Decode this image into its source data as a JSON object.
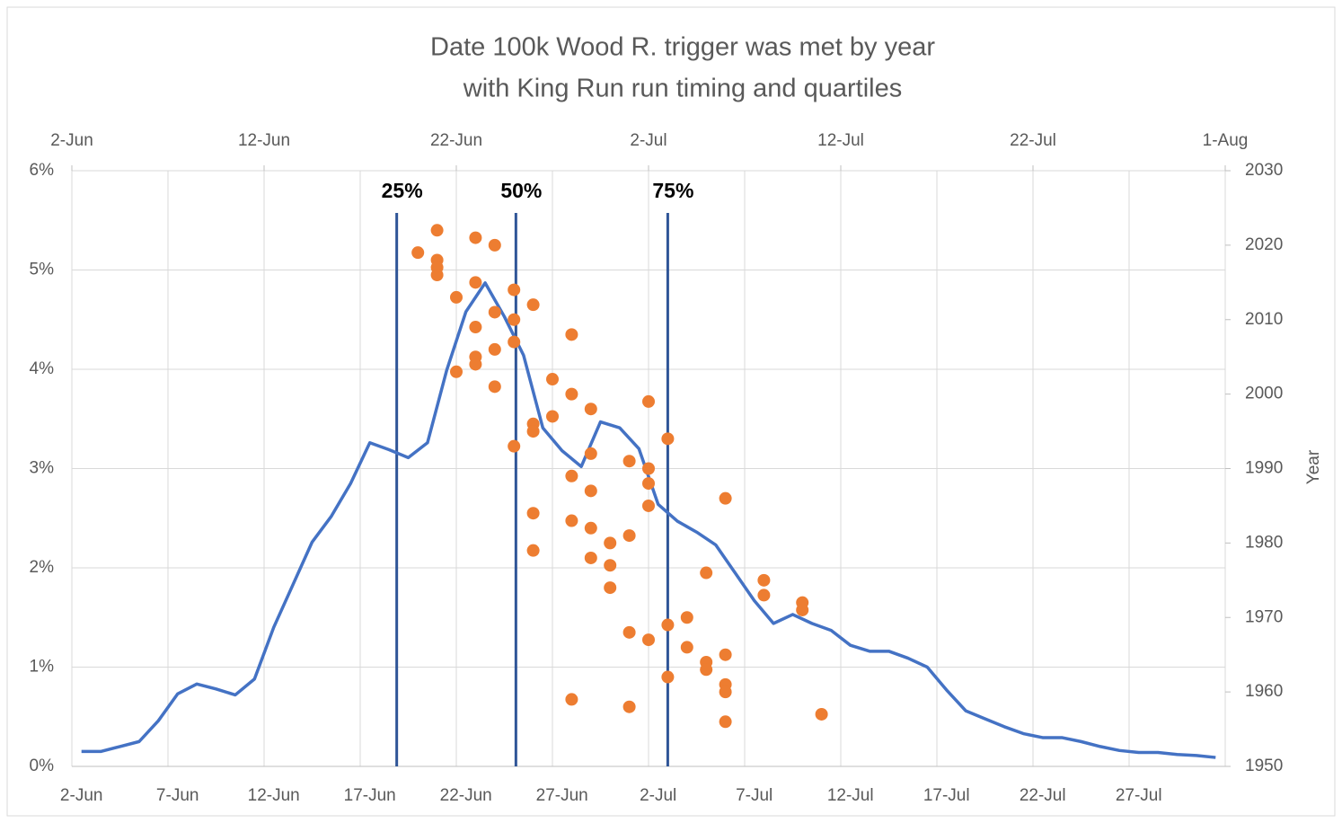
{
  "chart_data": {
    "type": "combo",
    "title": [
      "Date 100k Wood R. trigger was met by year",
      "with King Run run timing and quartiles"
    ],
    "y2_label": "Year",
    "categories": [
      "2-Jun",
      null,
      null,
      null,
      null,
      "7-Jun",
      null,
      null,
      null,
      null,
      "12-Jun",
      null,
      null,
      null,
      null,
      "17-Jun",
      null,
      null,
      null,
      null,
      "22-Jun",
      null,
      null,
      null,
      null,
      "27-Jun",
      null,
      null,
      null,
      null,
      "2-Jul",
      null,
      null,
      null,
      null,
      "7-Jul",
      null,
      null,
      null,
      null,
      "12-Jul",
      null,
      null,
      null,
      null,
      "17-Jul",
      null,
      null,
      null,
      null,
      "22-Jul",
      null,
      null,
      null,
      null,
      "27-Jul",
      null,
      null,
      null,
      null
    ],
    "ylim": [
      0,
      6
    ],
    "yticks": [
      {
        "value": 0,
        "label": "0%"
      },
      {
        "value": 1,
        "label": "1%"
      },
      {
        "value": 2,
        "label": "2%"
      },
      {
        "value": 3,
        "label": "3%"
      },
      {
        "value": 4,
        "label": "4%"
      },
      {
        "value": 5,
        "label": "5%"
      },
      {
        "value": 6,
        "label": "6%"
      }
    ],
    "y2lim": [
      1950,
      2030
    ],
    "y2ticks": [
      1950,
      1960,
      1970,
      1980,
      1990,
      2000,
      2010,
      2020,
      2030
    ],
    "xlim": [
      153,
      213
    ],
    "xticks": [
      {
        "value": 153,
        "label": "2-Jun"
      },
      {
        "value": 163,
        "label": "12-Jun"
      },
      {
        "value": 173,
        "label": "22-Jun"
      },
      {
        "value": 183,
        "label": "2-Jul"
      },
      {
        "value": 193,
        "label": "12-Jul"
      },
      {
        "value": 203,
        "label": "22-Jul"
      },
      {
        "value": 213,
        "label": "1-Aug"
      }
    ],
    "grid": true,
    "series": [
      {
        "type": "line",
        "color": "#4472c4",
        "values": [
          0.15,
          0.15,
          0.2,
          0.25,
          0.46,
          0.73,
          0.83,
          0.78,
          0.72,
          0.88,
          1.4,
          1.83,
          2.26,
          2.52,
          2.85,
          3.26,
          3.19,
          3.11,
          3.26,
          3.99,
          4.58,
          4.87,
          4.53,
          4.14,
          3.41,
          3.18,
          3.02,
          3.47,
          3.41,
          3.2,
          2.64,
          2.47,
          2.36,
          2.23,
          1.95,
          1.67,
          1.44,
          1.53,
          1.44,
          1.37,
          1.22,
          1.16,
          1.16,
          1.09,
          1.0,
          0.77,
          0.56,
          0.48,
          0.4,
          0.33,
          0.29,
          0.29,
          0.25,
          0.2,
          0.16,
          0.14,
          0.14,
          0.12,
          0.11,
          0.09
        ]
      },
      {
        "type": "scatter",
        "color": "#ed7d31",
        "axis": "y2",
        "x": [
          171,
          172,
          172,
          172,
          172,
          173,
          173,
          174,
          174,
          174,
          174,
          174,
          175,
          175,
          175,
          175,
          176,
          176,
          176,
          176,
          177,
          177,
          177,
          177,
          177,
          178,
          178,
          179,
          179,
          179,
          179,
          179,
          180,
          180,
          180,
          180,
          180,
          181,
          181,
          181,
          182,
          182,
          182,
          182,
          183,
          183,
          183,
          183,
          183,
          184,
          184,
          184,
          185,
          185,
          186,
          186,
          186,
          187,
          187,
          187,
          187,
          187,
          189,
          189,
          191,
          191,
          192
        ],
        "values": [
          2019,
          2022,
          2018,
          2017,
          2016,
          2013,
          2003,
          2021,
          2015,
          2009,
          2005,
          2004,
          2020,
          2011,
          2006,
          2001,
          2014,
          2010,
          2007,
          1993,
          2012,
          1996,
          1995,
          1984,
          1979,
          2002,
          1997,
          2008,
          2000,
          1989,
          1983,
          1959,
          1998,
          1992,
          1987,
          1982,
          1978,
          1980,
          1977,
          1974,
          1991,
          1981,
          1968,
          1958,
          1999,
          1990,
          1988,
          1985,
          1967,
          1994,
          1969,
          1962,
          1970,
          1966,
          1976,
          1964,
          1963,
          1986,
          1965,
          1961,
          1960,
          1956,
          1975,
          1973,
          1972,
          1971,
          1957
        ]
      }
    ],
    "quartiles": [
      {
        "label": "25%",
        "x": 169.9
      },
      {
        "label": "50%",
        "x": 176.1
      },
      {
        "label": "75%",
        "x": 184
      }
    ]
  }
}
